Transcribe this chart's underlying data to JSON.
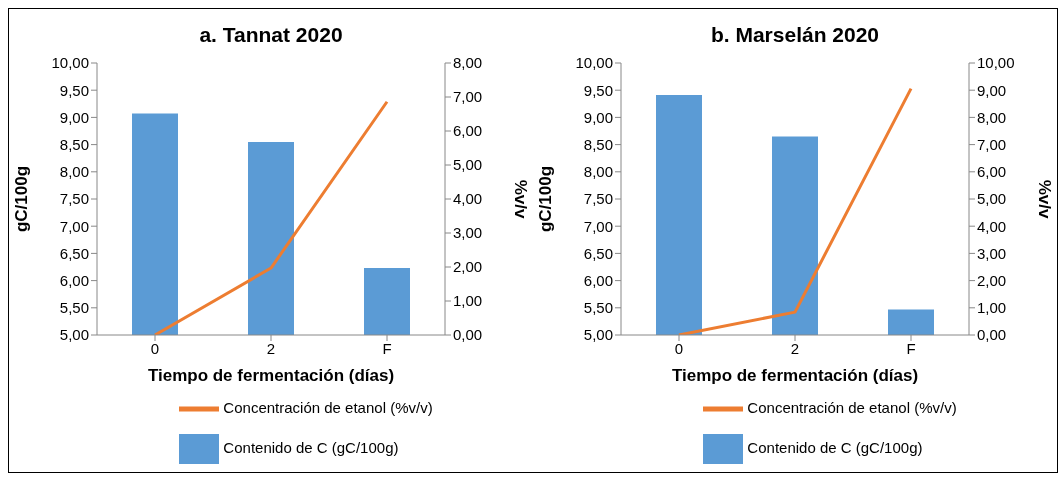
{
  "chart_data": [
    {
      "type": "bar",
      "title": "a. Tannat 2020",
      "xlabel": "Tiempo de fermentación (días)",
      "ylabel": "gC/100g",
      "y2label": "%v/v",
      "categories": [
        "0",
        "2",
        "F"
      ],
      "series": [
        {
          "name": "Contenido de C (gC/100g)",
          "color": "#5b9bd5",
          "values": [
            9.07,
            8.55,
            6.23
          ]
        },
        {
          "name": "Concentración de etanol (%v/v)",
          "type": "line",
          "axis": "y2",
          "color": "#ed7d31",
          "values": [
            0,
            1.97,
            6.86
          ]
        }
      ],
      "ylim": [
        5,
        10
      ],
      "yticks": [
        {
          "value": 5,
          "label": "5,00"
        },
        {
          "value": 5.5,
          "label": "5,50"
        },
        {
          "value": 6,
          "label": "6,00"
        },
        {
          "value": 6.5,
          "label": "6,50"
        },
        {
          "value": 7,
          "label": "7,00"
        },
        {
          "value": 7.5,
          "label": "7,50"
        },
        {
          "value": 8,
          "label": "8,00"
        },
        {
          "value": 8.5,
          "label": "8,50"
        },
        {
          "value": 9,
          "label": "9,00"
        },
        {
          "value": 9.5,
          "label": "9,50"
        },
        {
          "value": 10,
          "label": "10,00"
        }
      ],
      "y2lim": [
        0,
        8
      ],
      "y2ticks": [
        {
          "value": 0,
          "label": "0,00"
        },
        {
          "value": 1,
          "label": "1,00"
        },
        {
          "value": 2,
          "label": "2,00"
        },
        {
          "value": 3,
          "label": "3,00"
        },
        {
          "value": 4,
          "label": "4,00"
        },
        {
          "value": 5,
          "label": "5,00"
        },
        {
          "value": 6,
          "label": "6,00"
        },
        {
          "value": 7,
          "label": "7,00"
        },
        {
          "value": 8,
          "label": "8,00"
        }
      ],
      "legend": "bottom",
      "marker": "none",
      "grid": false
    },
    {
      "type": "bar",
      "title": "b. Marselán 2020",
      "xlabel": "Tiempo de fermentación (días)",
      "ylabel": "gC/100g",
      "y2label": "%v/v",
      "categories": [
        "0",
        "2",
        "F"
      ],
      "series": [
        {
          "name": "Contenido de C (gC/100g)",
          "color": "#5b9bd5",
          "values": [
            9.41,
            8.65,
            5.47
          ]
        },
        {
          "name": "Concentración de etanol (%v/v)",
          "type": "line",
          "axis": "y2",
          "color": "#ed7d31",
          "values": [
            0,
            0.84,
            9.06
          ]
        }
      ],
      "ylim": [
        5,
        10
      ],
      "yticks": [
        {
          "value": 5,
          "label": "5,00"
        },
        {
          "value": 5.5,
          "label": "5,50"
        },
        {
          "value": 6,
          "label": "6,00"
        },
        {
          "value": 6.5,
          "label": "6,50"
        },
        {
          "value": 7,
          "label": "7,00"
        },
        {
          "value": 7.5,
          "label": "7,50"
        },
        {
          "value": 8,
          "label": "8,00"
        },
        {
          "value": 8.5,
          "label": "8,50"
        },
        {
          "value": 9,
          "label": "9,00"
        },
        {
          "value": 9.5,
          "label": "9,50"
        },
        {
          "value": 10,
          "label": "10,00"
        }
      ],
      "y2lim": [
        0,
        10
      ],
      "y2ticks": [
        {
          "value": 0,
          "label": "0,00"
        },
        {
          "value": 1,
          "label": "1,00"
        },
        {
          "value": 2,
          "label": "2,00"
        },
        {
          "value": 3,
          "label": "3,00"
        },
        {
          "value": 4,
          "label": "4,00"
        },
        {
          "value": 5,
          "label": "5,00"
        },
        {
          "value": 6,
          "label": "6,00"
        },
        {
          "value": 7,
          "label": "7,00"
        },
        {
          "value": 8,
          "label": "8,00"
        },
        {
          "value": 9,
          "label": "9,00"
        },
        {
          "value": 10,
          "label": "10,00"
        }
      ],
      "legend": "bottom",
      "marker": "none",
      "grid": false
    }
  ]
}
